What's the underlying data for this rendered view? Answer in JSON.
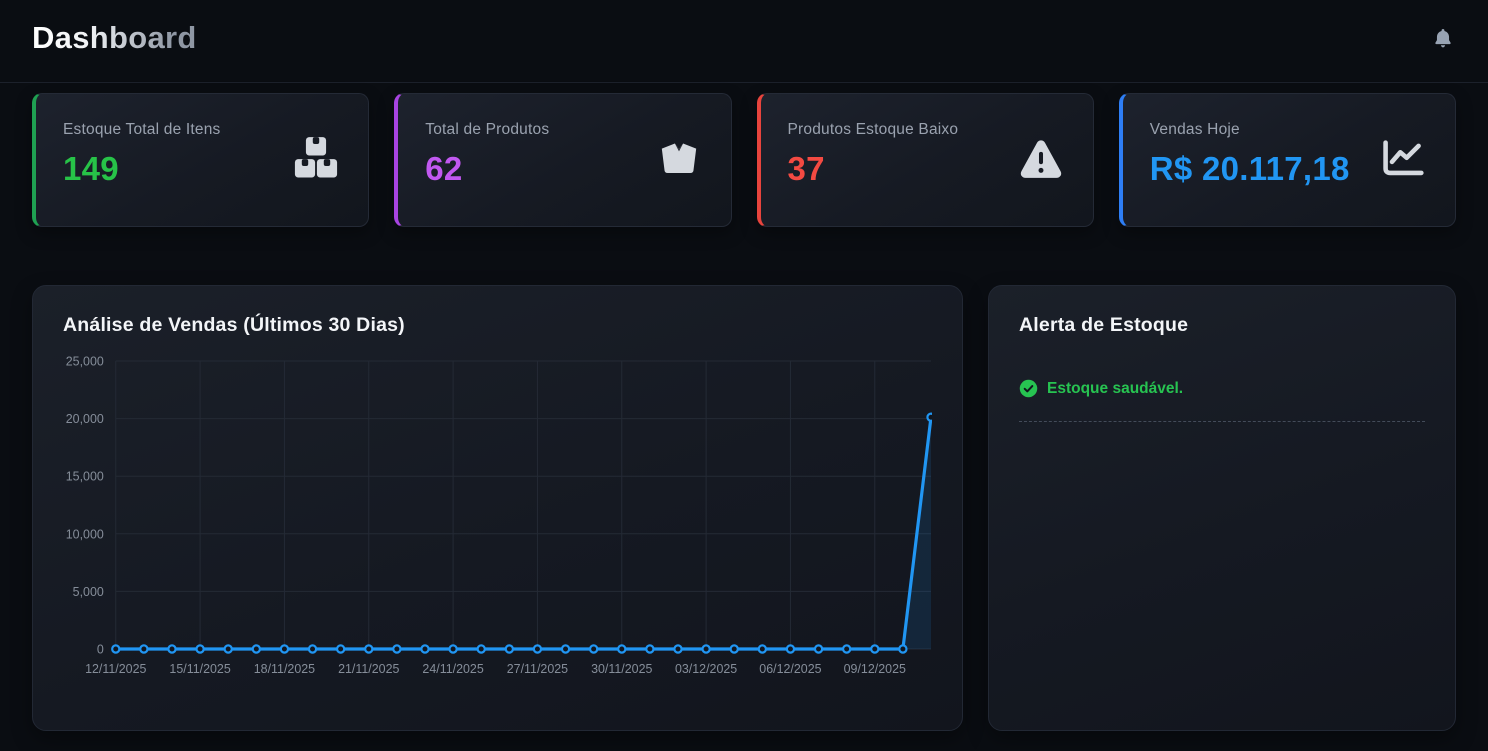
{
  "header": {
    "title": "Dashboard",
    "bell_icon": "bell-icon"
  },
  "stats": [
    {
      "label": "Estoque Total de Itens",
      "value": "149",
      "accent": "#1fa152",
      "value_color": "#27c348",
      "icon": "boxes-stacked-icon"
    },
    {
      "label": "Total de Produtos",
      "value": "62",
      "accent": "#a844e2",
      "value_color": "#c158f0",
      "icon": "box-open-icon"
    },
    {
      "label": "Produtos Estoque Baixo",
      "value": "37",
      "accent": "#e8443d",
      "value_color": "#f44a42",
      "icon": "warning-triangle-icon"
    },
    {
      "label": "Vendas Hoje",
      "value": "R$ 20.117,18",
      "accent": "#2e7ef5",
      "value_color": "#2196f3",
      "icon": "chart-line-icon"
    }
  ],
  "chart_card": {
    "title": "Análise de Vendas (Últimos 30 Dias)"
  },
  "chart_data": {
    "type": "line",
    "title": "Análise de Vendas (Últimos 30 Dias)",
    "x": [
      "12/11/2025",
      "13/11/2025",
      "14/11/2025",
      "15/11/2025",
      "16/11/2025",
      "17/11/2025",
      "18/11/2025",
      "19/11/2025",
      "20/11/2025",
      "21/11/2025",
      "22/11/2025",
      "23/11/2025",
      "24/11/2025",
      "25/11/2025",
      "26/11/2025",
      "27/11/2025",
      "28/11/2025",
      "29/11/2025",
      "30/11/2025",
      "01/12/2025",
      "02/12/2025",
      "03/12/2025",
      "04/12/2025",
      "05/12/2025",
      "06/12/2025",
      "07/12/2025",
      "08/12/2025",
      "09/12/2025",
      "10/12/2025",
      "11/12/2025"
    ],
    "values": [
      0,
      0,
      0,
      0,
      0,
      0,
      0,
      0,
      0,
      0,
      0,
      0,
      0,
      0,
      0,
      0,
      0,
      0,
      0,
      0,
      0,
      0,
      0,
      0,
      0,
      0,
      0,
      0,
      0,
      20117.18
    ],
    "x_tick_indices": [
      0,
      3,
      6,
      9,
      12,
      15,
      18,
      21,
      24,
      27
    ],
    "x_tick_labels": [
      "12/11/2025",
      "15/11/2025",
      "18/11/2025",
      "21/11/2025",
      "24/11/2025",
      "27/11/2025",
      "30/11/2025",
      "03/12/2025",
      "06/12/2025",
      "09/12/2025"
    ],
    "y_ticks": [
      0,
      5000,
      10000,
      15000,
      20000,
      25000
    ],
    "y_tick_labels": [
      "0",
      "5,000",
      "10,000",
      "15,000",
      "20,000",
      "25,000"
    ],
    "ylim": [
      0,
      25000
    ],
    "xlabel": "",
    "ylabel": "",
    "grid": true,
    "legend": "none",
    "line_color": "#2196f3",
    "fill_color": "rgba(33,150,243,0.13)",
    "point_fill": "#11161f",
    "grid_color": "#242a35",
    "tick_color": "#858d99"
  },
  "alert_card": {
    "title": "Alerta de Estoque",
    "status_text": "Estoque saudável.",
    "status_color": "#27c351",
    "status_icon": "check-circle-icon"
  }
}
